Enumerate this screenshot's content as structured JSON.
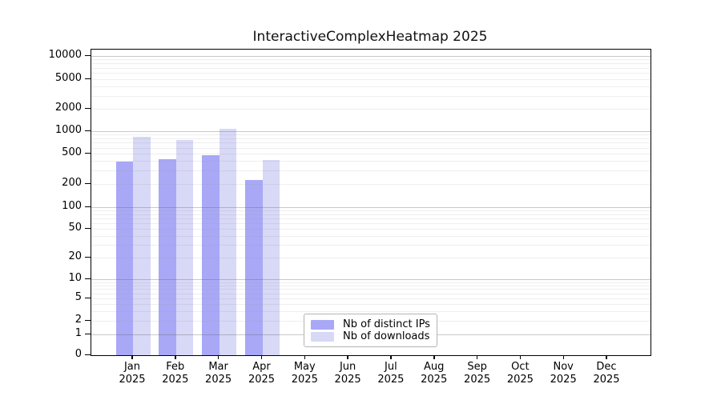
{
  "chart_data": {
    "type": "bar",
    "title": "InteractiveComplexHeatmap 2025",
    "year_label": "2025",
    "categories": [
      "Jan",
      "Feb",
      "Mar",
      "Apr",
      "May",
      "Jun",
      "Jul",
      "Aug",
      "Sep",
      "Oct",
      "Nov",
      "Dec"
    ],
    "series": [
      {
        "name": "Nb of distinct IPs",
        "color": "#a8a8f6",
        "values": [
          395,
          425,
          475,
          225,
          null,
          null,
          null,
          null,
          null,
          null,
          null,
          null
        ]
      },
      {
        "name": "Nb of downloads",
        "color": "#d8d8f7",
        "values": [
          850,
          755,
          1090,
          410,
          null,
          null,
          null,
          null,
          null,
          null,
          null,
          null
        ]
      }
    ],
    "y_axis": {
      "scale": "symlog",
      "ticks": [
        0,
        1,
        2,
        5,
        10,
        20,
        50,
        100,
        200,
        500,
        1000,
        2000,
        5000,
        10000
      ]
    },
    "x_axis": {
      "tick_format": "month over year"
    },
    "grid": {
      "major": true,
      "minor": true
    },
    "legend": {
      "position": "inside-bottom-center"
    }
  }
}
